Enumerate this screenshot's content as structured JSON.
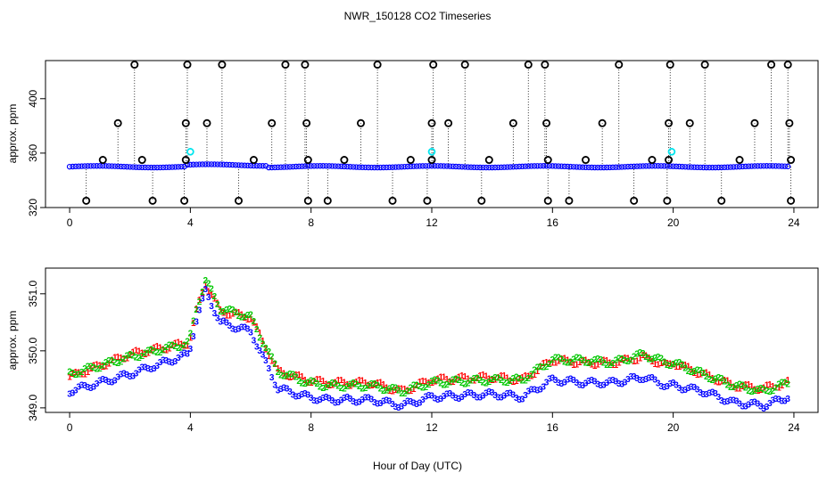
{
  "title": "NWR_150128  CO2 Timeseries",
  "xlabel": "Hour of Day (UTC)",
  "chart_data": [
    {
      "type": "scatter",
      "panel": "top",
      "ylabel": "approx. ppm",
      "xlim": [
        -0.8,
        24.8
      ],
      "ylim": [
        320,
        428
      ],
      "xticks": [
        0,
        4,
        8,
        12,
        16,
        20,
        24
      ],
      "yticks": [
        320,
        360,
        400
      ],
      "vertical_drop_lines": true,
      "series": [
        {
          "color": "#000000",
          "marker": "o",
          "spikes_high": [
            1.6,
            2.15,
            3.85,
            3.9,
            4.55,
            5.05,
            6.7,
            7.15,
            7.8,
            7.85,
            9.65,
            10.2,
            12.0,
            12.05,
            12.55,
            13.1,
            14.7,
            15.2,
            15.75,
            15.8,
            17.65,
            18.2,
            19.85,
            19.9,
            20.55,
            21.05,
            22.7,
            23.25,
            23.8,
            23.85
          ],
          "spikes_high_values": [
            382,
            425,
            382,
            425,
            382,
            425,
            382,
            425,
            425,
            382,
            382,
            425,
            382,
            425,
            382,
            425,
            382,
            425,
            425,
            382,
            382,
            425,
            382,
            425,
            382,
            425,
            382,
            425,
            425,
            382
          ],
          "spikes_low": [
            0.55,
            2.75,
            3.8,
            5.6,
            7.9,
            8.55,
            10.7,
            11.85,
            13.65,
            15.85,
            16.55,
            18.7,
            19.8,
            21.6,
            23.9
          ],
          "spikes_low_value": 325,
          "mid_points": [
            1.1,
            2.4,
            3.85,
            6.1,
            7.9,
            9.1,
            11.3,
            12.0,
            13.9,
            15.85,
            17.1,
            19.3,
            19.85,
            22.2,
            23.9
          ],
          "mid_value": 355
        },
        {
          "color": "#00e5ee",
          "marker": "o",
          "points": [
            [
              4.0,
              361
            ],
            [
              12.0,
              361
            ],
            [
              19.95,
              361
            ]
          ]
        },
        {
          "color": "#0000ff",
          "marker": "o",
          "baseline": "approx. 350 ppm, every 0.1 h from 0 to 23.8"
        }
      ]
    },
    {
      "type": "scatter",
      "panel": "bottom",
      "ylabel": "approx. ppm",
      "xlim": [
        -0.8,
        24.8
      ],
      "ylim": [
        348.92,
        351.45
      ],
      "xticks": [
        0,
        4,
        8,
        12,
        16,
        20,
        24
      ],
      "yticks": [
        349.0,
        350.0,
        351.0
      ],
      "series": [
        {
          "symbol": "1",
          "color": "#ff0000",
          "x": [
            0,
            2,
            3.95,
            4.2,
            4.5,
            5.0,
            6.0,
            6.9,
            7.9,
            8.5,
            10.0,
            11.0,
            12.0,
            14.0,
            15.0,
            16.0,
            17.0,
            18.0,
            19.0,
            19.8,
            20.0,
            21.0,
            22.0,
            23.0,
            23.8
          ],
          "y": [
            349.55,
            349.95,
            350.15,
            350.7,
            351.2,
            350.7,
            350.6,
            349.65,
            349.5,
            349.45,
            349.45,
            349.3,
            349.5,
            349.55,
            349.5,
            349.85,
            349.8,
            349.8,
            349.9,
            349.75,
            349.8,
            349.6,
            349.4,
            349.35,
            349.45
          ]
        },
        {
          "symbol": "2",
          "color": "#00c800",
          "x": [
            0,
            2,
            3.95,
            4.2,
            4.5,
            5.0,
            6.0,
            6.9,
            7.9,
            8.5,
            10.0,
            11.0,
            12.0,
            14.0,
            15.0,
            16.0,
            17.0,
            18.0,
            19.0,
            19.8,
            20.0,
            21.0,
            22.0,
            23.0,
            23.8
          ],
          "y": [
            349.6,
            349.9,
            350.15,
            350.75,
            351.25,
            350.75,
            350.6,
            349.65,
            349.45,
            349.4,
            349.4,
            349.3,
            349.45,
            349.5,
            349.5,
            349.85,
            349.85,
            349.8,
            349.95,
            349.8,
            349.8,
            349.6,
            349.4,
            349.3,
            349.45
          ]
        },
        {
          "symbol": "3",
          "color": "#0000ff",
          "x": [
            0,
            2,
            3.95,
            4.2,
            4.5,
            5.0,
            6.0,
            6.9,
            7.9,
            8.5,
            10.0,
            11.0,
            12.0,
            14.0,
            15.0,
            16.0,
            17.0,
            18.0,
            19.0,
            19.8,
            20.0,
            21.0,
            22.0,
            23.0,
            23.8
          ],
          "y": [
            349.3,
            349.6,
            349.95,
            350.55,
            351.05,
            350.5,
            350.35,
            349.35,
            349.2,
            349.15,
            349.15,
            349.05,
            349.2,
            349.25,
            349.2,
            349.5,
            349.45,
            349.45,
            349.55,
            349.4,
            349.4,
            349.3,
            349.1,
            349.05,
            349.2
          ]
        }
      ]
    }
  ]
}
